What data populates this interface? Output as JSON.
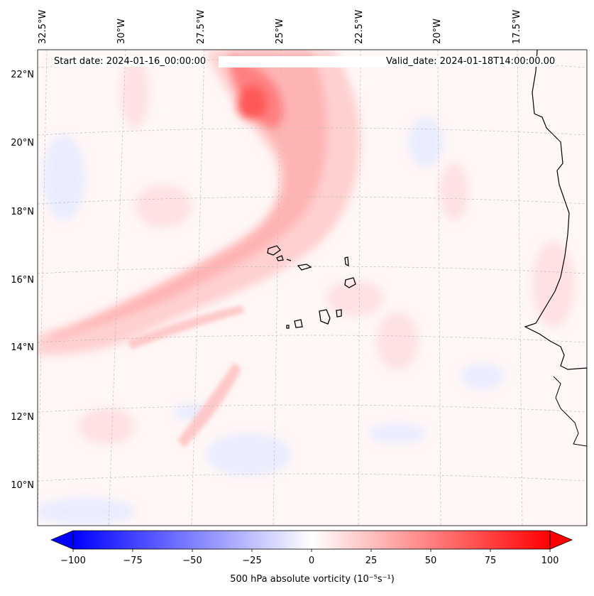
{
  "map": {
    "start_date_label": "Start date: 2024-01-16_00:00:00",
    "valid_date_label": "Valid_date: 2024-01-18T14:00:00.00",
    "lon_labels": [
      "32.5°W",
      "30°W",
      "27.5°W",
      "25°W",
      "22.5°W",
      "20°W",
      "17.5°W"
    ],
    "lat_labels": [
      "22°N",
      "20°N",
      "18°N",
      "16°N",
      "14°N",
      "12°N",
      "10°N"
    ],
    "field_colors": {
      "positive": "#ff0000",
      "negative": "#0000ff",
      "neutral": "#ffffff"
    },
    "coastline_color": "#000000"
  },
  "colorbar": {
    "title": "500 hPa absolute vorticity (10⁻⁵s⁻¹)",
    "ticks": [
      "−100",
      "−75",
      "−50",
      "−25",
      "0",
      "25",
      "50",
      "75",
      "100"
    ],
    "min": -100,
    "max": 100
  }
}
